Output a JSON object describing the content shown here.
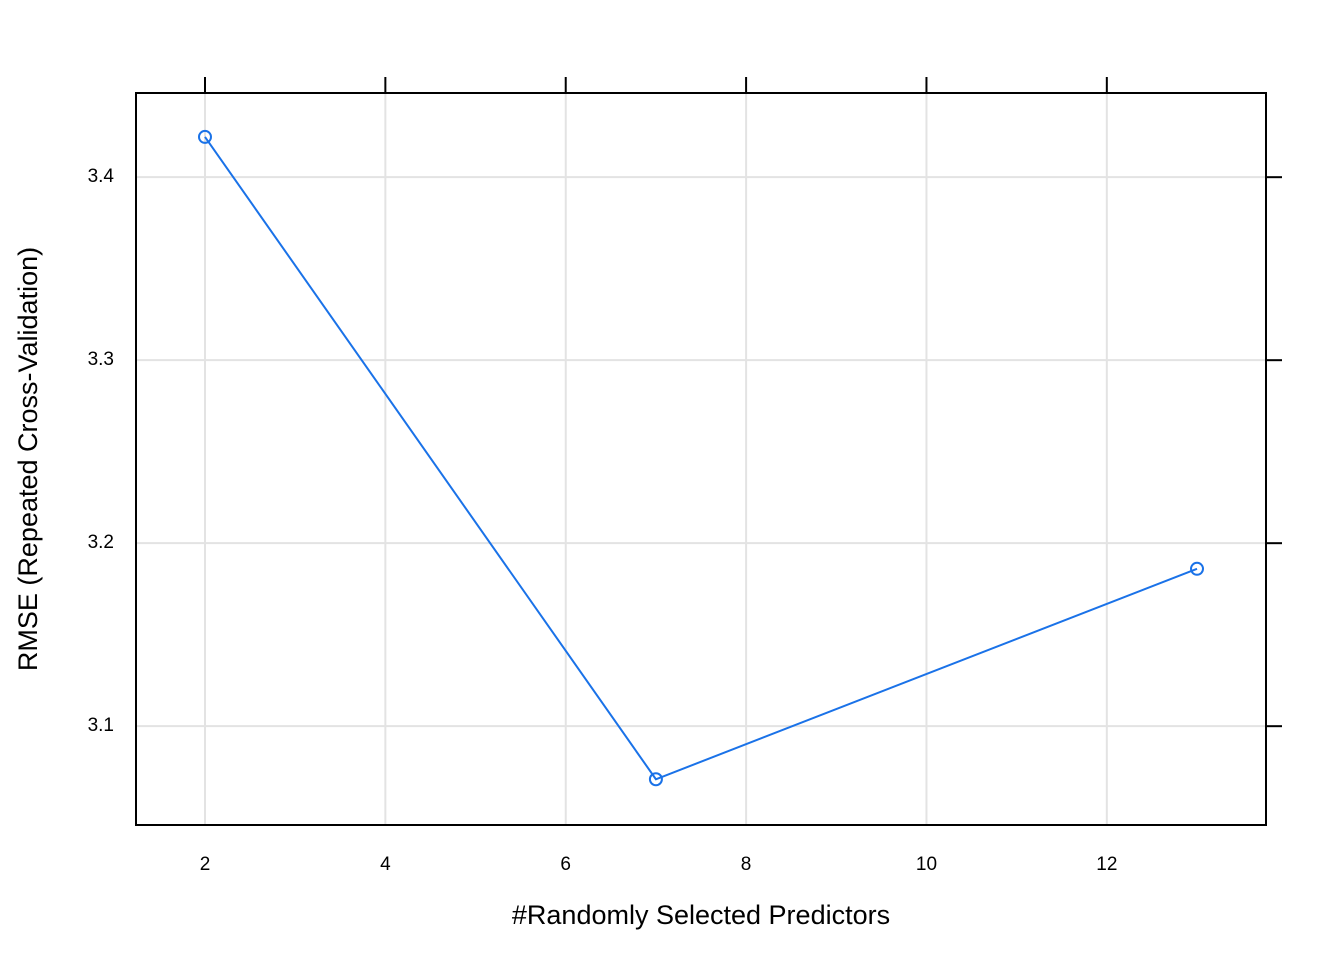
{
  "chart_data": {
    "type": "line",
    "x_label": "#Randomly Selected Predictors",
    "y_label": "RMSE (Repeated Cross-Validation)",
    "x": [
      2,
      7,
      13
    ],
    "series": [
      {
        "color": "#1a72e8",
        "values": [
          3.422,
          3.071,
          3.186
        ]
      }
    ],
    "xlim": [
      1.235,
      13.765
    ],
    "xticks": [
      2,
      4,
      6,
      8,
      10,
      12
    ],
    "ylim": [
      3.046,
      3.446
    ],
    "yticks": [
      3.1,
      3.2,
      3.3,
      3.4
    ],
    "grid": true
  }
}
